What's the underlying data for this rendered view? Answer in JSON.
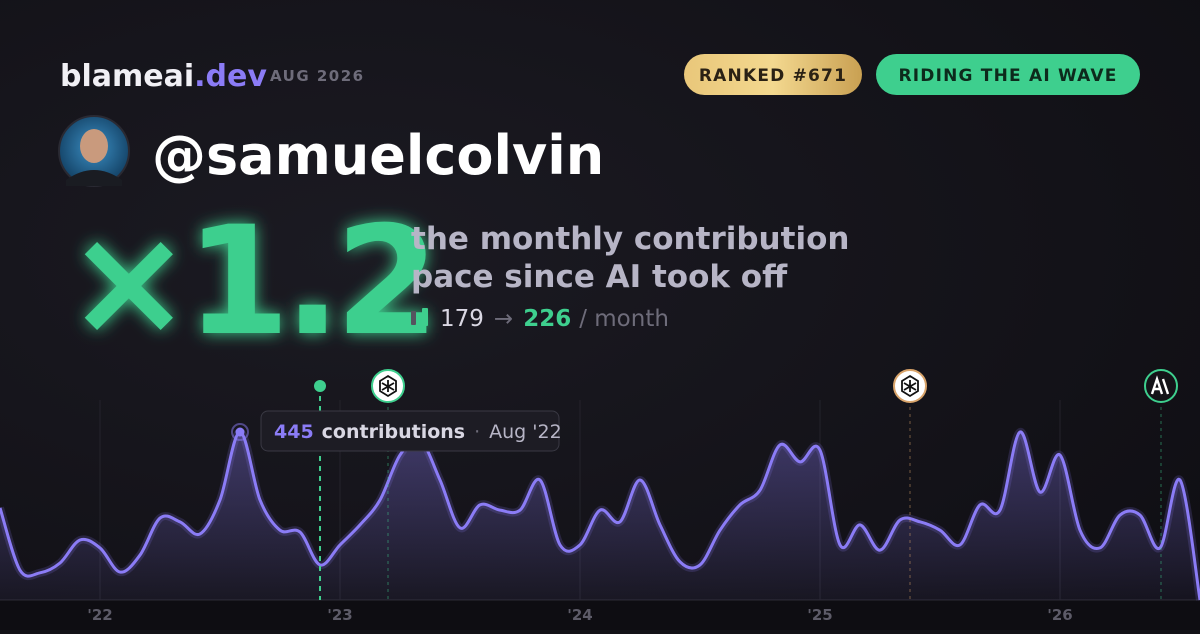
{
  "header": {
    "brand": "blameai",
    "brand_suffix": ".dev",
    "date": "AUG 2026"
  },
  "badges": [
    "RANKED #671",
    "RIDING THE AI WAVE"
  ],
  "username": "@samuelcolvin",
  "multiplier": "×1.2",
  "description": [
    "the monthly contribution",
    "pace since AI took off"
  ],
  "stats": {
    "from": "179",
    "arrow": "→",
    "to": "226",
    "unit": "/ month"
  },
  "chart_data": {
    "type": "line",
    "categories": [
      null,
      null,
      null,
      null,
      null,
      "'22",
      null,
      null,
      null,
      null,
      null,
      null,
      null,
      null,
      null,
      null,
      null,
      "'23",
      null,
      null,
      null,
      null,
      null,
      null,
      null,
      null,
      null,
      null,
      null,
      "'24",
      null,
      null,
      null,
      null,
      null,
      null,
      null,
      null,
      null,
      null,
      null,
      "'25",
      null,
      null,
      null,
      null,
      null,
      null,
      null,
      null,
      null,
      null,
      null,
      "'26",
      null,
      null,
      null,
      null,
      null,
      null,
      null
    ],
    "series": [
      {
        "name": "contributions",
        "color": "#8b7cf6",
        "values": [
          244,
          79,
          72,
          98,
          159,
          138,
          74,
          119,
          217,
          207,
          175,
          265,
          445,
          265,
          185,
          180,
          93,
          146,
          199,
          265,
          384,
          424,
          318,
          191,
          252,
          238,
          238,
          318,
          146,
          146,
          238,
          207,
          318,
          199,
          101,
          93,
          185,
          252,
          291,
          411,
          366,
          397,
          146,
          199,
          132,
          212,
          207,
          185,
          146,
          252,
          238,
          445,
          286,
          384,
          185,
          138,
          225,
          225,
          138,
          318,
          0
        ]
      }
    ],
    "tooltip": {
      "date": "Aug '22"
    }
  }
}
